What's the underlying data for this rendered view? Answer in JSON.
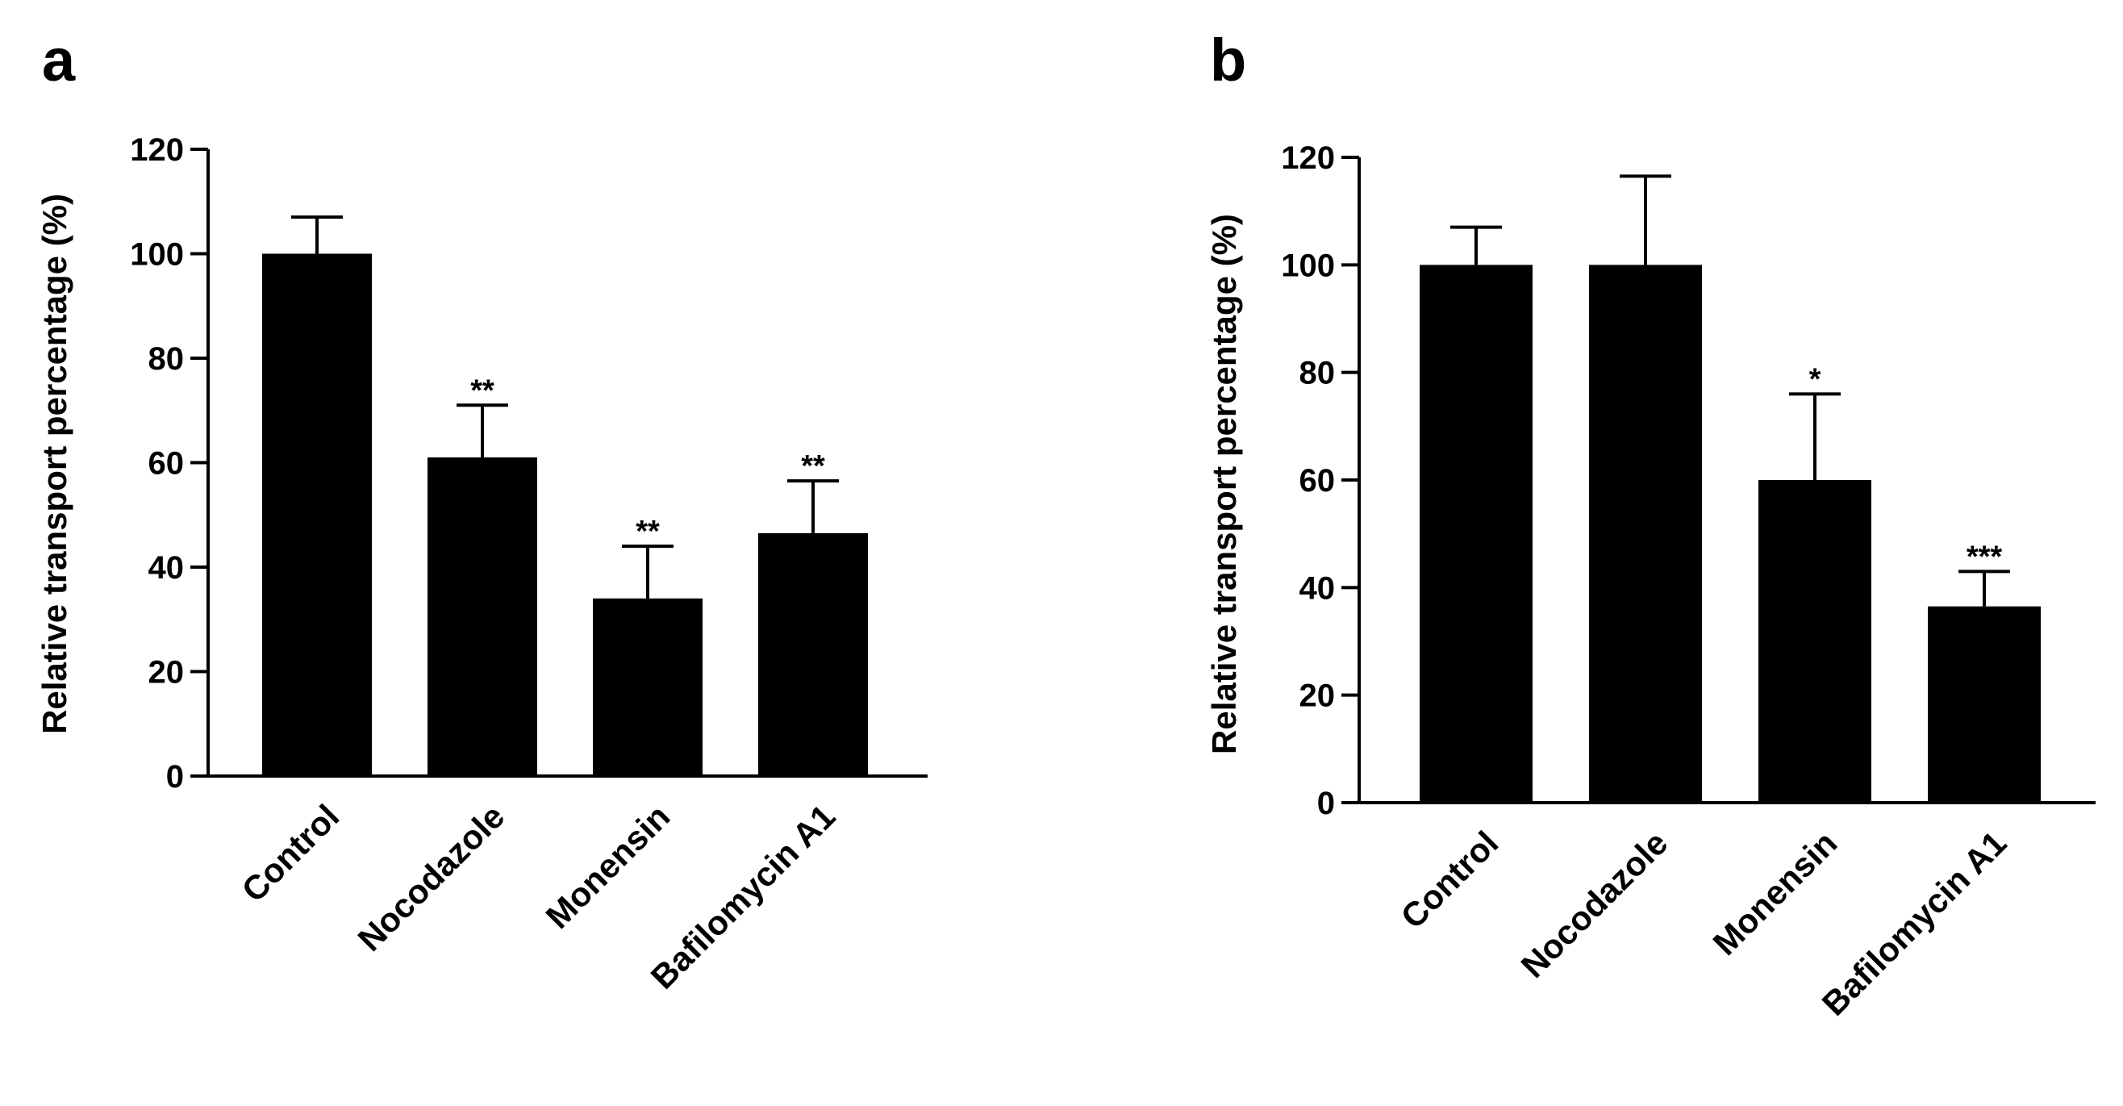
{
  "chart_data": [
    {
      "panel": "a",
      "type": "bar",
      "title": "",
      "xlabel": "",
      "ylabel": "Relative transport percentage (%)",
      "ylim": [
        0,
        120
      ],
      "yticks": [
        0,
        20,
        40,
        60,
        80,
        100,
        120
      ],
      "categories": [
        "Control",
        "Nocodazole",
        "Monensin",
        "Bafilomycin A1"
      ],
      "values": [
        100,
        61,
        34,
        46.5
      ],
      "errors": [
        7,
        10,
        10,
        10
      ],
      "significance": [
        "",
        "**",
        "**",
        "**"
      ],
      "bar_color": "#000000",
      "grid": false
    },
    {
      "panel": "b",
      "type": "bar",
      "title": "",
      "xlabel": "",
      "ylabel": "Relative transport percentage (%)",
      "ylim": [
        0,
        120
      ],
      "yticks": [
        0,
        20,
        40,
        60,
        80,
        100,
        120
      ],
      "categories": [
        "Control",
        "Nocodazole",
        "Monensin",
        "Bafilomycin A1"
      ],
      "values": [
        100,
        100,
        60,
        36.5
      ],
      "errors": [
        7,
        16.5,
        16,
        6.5
      ],
      "significance": [
        "",
        "",
        "*",
        "***"
      ],
      "bar_color": "#000000",
      "grid": false
    }
  ]
}
